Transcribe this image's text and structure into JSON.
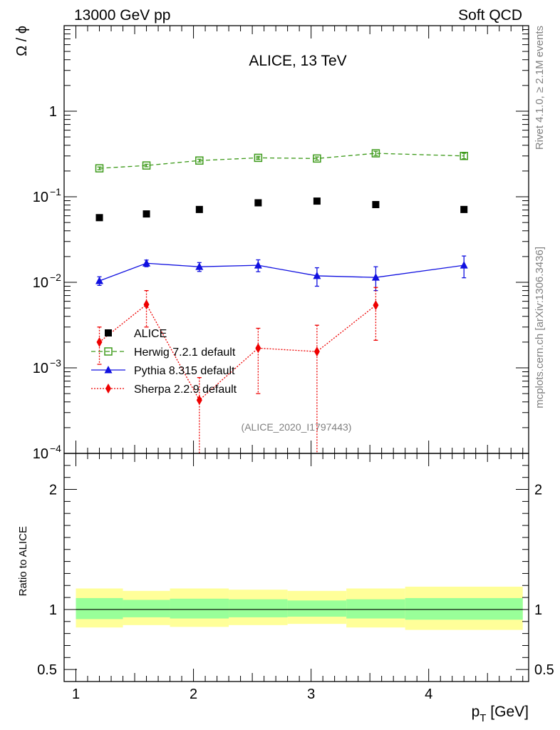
{
  "header": {
    "left": "13000 GeV pp",
    "right": "Soft QCD",
    "title": "ALICE, 13 TeV",
    "rivet": "Rivet 4.1.0, ≥ 2.1M events",
    "mcplots": "mcplots.cern.ch [arXiv:1306.3436]",
    "watermark": "(ALICE_2020_I1797443)"
  },
  "colors": {
    "data": "#000000",
    "herwig": "#3d9a1a",
    "pythia": "#1010e0",
    "sherpa": "#ee0000",
    "band_inner": "#99ff99",
    "band_outer": "#ffff99"
  },
  "chart_data": [
    {
      "type": "scatter",
      "panel": "main",
      "ylabel": "Ω / ϕ",
      "yscale": "log",
      "xlim": [
        0.9,
        4.85
      ],
      "ylim": [
        0.0001,
        10
      ],
      "y_ticks": [
        {
          "value": 1,
          "label": "1"
        },
        {
          "value": 0.1,
          "label": "10",
          "sup": "−1"
        },
        {
          "value": 0.01,
          "label": "10",
          "sup": "−2"
        },
        {
          "value": 0.001,
          "label": "10",
          "sup": "−3"
        },
        {
          "value": 0.0001,
          "label": "10",
          "sup": "−4"
        }
      ],
      "legend": {
        "position": "center-left"
      },
      "series": [
        {
          "key": "data",
          "name": "ALICE",
          "style": "square",
          "x": [
            1.2,
            1.6,
            2.05,
            2.55,
            3.05,
            3.55,
            4.3
          ],
          "y": [
            0.057,
            0.063,
            0.071,
            0.085,
            0.089,
            0.081,
            0.071
          ],
          "yerr_lo": [
            0.0,
            0.0,
            0.0,
            0.0,
            0.0,
            0.0,
            0.0
          ],
          "yerr_hi": [
            0.0,
            0.0,
            0.0,
            0.0,
            0.0,
            0.0,
            0.0
          ]
        },
        {
          "key": "herwig",
          "name": "Herwig 7.2.1 default",
          "style": "open-square",
          "dash": "6,4",
          "x": [
            1.2,
            1.6,
            2.05,
            2.55,
            3.05,
            3.55,
            4.3
          ],
          "y": [
            0.215,
            0.232,
            0.265,
            0.285,
            0.28,
            0.322,
            0.3
          ],
          "yerr_lo": [
            0.008,
            0.008,
            0.01,
            0.012,
            0.012,
            0.018,
            0.022
          ],
          "yerr_hi": [
            0.008,
            0.008,
            0.01,
            0.012,
            0.012,
            0.018,
            0.022
          ]
        },
        {
          "key": "pythia",
          "name": "Pythia 8.315 default",
          "style": "triangle",
          "dash": "",
          "x": [
            1.2,
            1.6,
            2.05,
            2.55,
            3.05,
            3.55,
            4.3
          ],
          "y": [
            0.0104,
            0.0167,
            0.0152,
            0.0158,
            0.0119,
            0.0114,
            0.0158
          ],
          "yerr_lo": [
            0.0012,
            0.0015,
            0.0018,
            0.0025,
            0.0029,
            0.0034,
            0.0045
          ],
          "yerr_hi": [
            0.0012,
            0.0015,
            0.0018,
            0.0025,
            0.0029,
            0.0038,
            0.0045
          ]
        },
        {
          "key": "sherpa",
          "name": "Sherpa 2.2.9 default",
          "style": "diamond",
          "dash": "2,2",
          "x": [
            1.2,
            1.6,
            2.05,
            2.55,
            3.05,
            3.55
          ],
          "y": [
            0.002,
            0.0055,
            0.00042,
            0.0017,
            0.00155,
            0.0054
          ],
          "yerr_lo": [
            0.0009,
            0.0025,
            0.00035,
            0.0012,
            0.00148,
            0.0033
          ],
          "yerr_hi": [
            0.001,
            0.0025,
            0.00035,
            0.0012,
            0.0016,
            0.0033
          ]
        }
      ]
    },
    {
      "type": "area",
      "panel": "ratio",
      "xlabel": "p",
      "xlabel_sub": "T",
      "xlabel_unit": " [GeV]",
      "ylabel": "Ratio to ALICE",
      "xlim": [
        0.9,
        4.85
      ],
      "ylim": [
        0.4,
        2.3
      ],
      "x_ticks": [
        1,
        2,
        3,
        4
      ],
      "y_ticks": [
        {
          "value": 0.5,
          "label": "0.5"
        },
        {
          "value": 1,
          "label": "1"
        },
        {
          "value": 2,
          "label": "2"
        }
      ],
      "bins": [
        1.0,
        1.4,
        1.8,
        2.3,
        2.8,
        3.3,
        3.8,
        4.8
      ],
      "inner_lo": [
        0.92,
        0.935,
        0.925,
        0.935,
        0.94,
        0.925,
        0.915
      ],
      "inner_hi": [
        1.095,
        1.08,
        1.09,
        1.085,
        1.075,
        1.085,
        1.095
      ],
      "outer_lo": [
        0.85,
        0.87,
        0.855,
        0.87,
        0.88,
        0.85,
        0.83
      ],
      "outer_hi": [
        1.175,
        1.155,
        1.175,
        1.165,
        1.155,
        1.175,
        1.19
      ],
      "ratio_line": 1
    }
  ]
}
